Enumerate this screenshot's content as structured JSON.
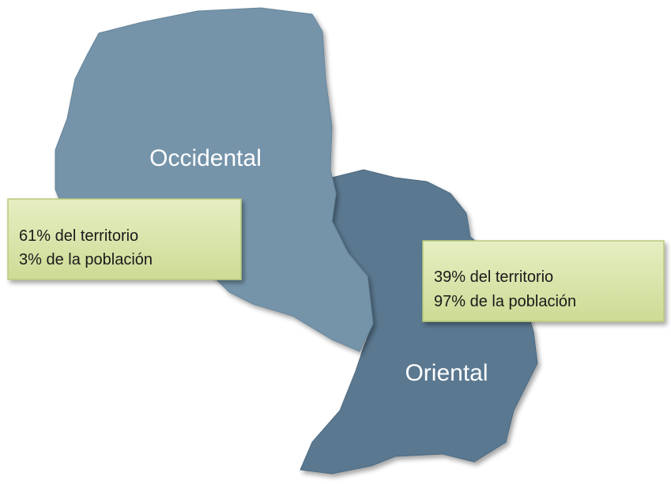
{
  "regions": [
    {
      "name": "Occidental",
      "lines": [
        "61% del territorio",
        "3% de la población"
      ]
    },
    {
      "name": "Oriental",
      "lines": [
        "39% del territorio",
        "97% de la población"
      ]
    }
  ]
}
